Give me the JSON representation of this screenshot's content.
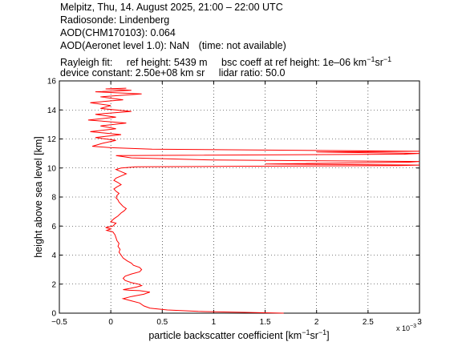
{
  "header": {
    "line1": "Melpitz, Thu, 14. August 2025, 21:00 – 22:00 UTC",
    "line2": "Radiosonde: Lindenberg",
    "line3": "AOD(CHM170103): 0.064",
    "line4a": "AOD(Aeronet level 1.0): NaN",
    "line4b": "(time: not available)",
    "line5a": "Rayleigh fit:",
    "line5b": "ref height: 5439 m",
    "line5c": "bsc coeff at ref height: 1e–06 km",
    "line5c_sup1": "−1",
    "line5c_mid": "sr",
    "line5c_sup2": "−1",
    "line6a": "device constant: 2.50e+08 km sr",
    "line6b": "lidar ratio: 50.0"
  },
  "chart_data": {
    "type": "line",
    "xlabel": "particle backscatter coefficient [km",
    "xlabel_sup1": "−1",
    "xlabel_mid": "sr",
    "xlabel_sup2": "−1",
    "xlabel_end": "]",
    "ylabel": "height above sea level [km]",
    "x_exponent_label": "x 10",
    "x_exponent_power": "−3",
    "xlim": [
      -0.5,
      3.0
    ],
    "ylim": [
      0,
      16
    ],
    "xticks": [
      "−0.5",
      "0",
      "0.5",
      "1",
      "1.5",
      "2",
      "2.5",
      "3"
    ],
    "yticks": [
      "0",
      "2",
      "4",
      "6",
      "8",
      "10",
      "12",
      "14",
      "16"
    ],
    "grid": true,
    "line_color": "#ff0000",
    "series": [
      {
        "points": [
          [
            1.68,
            0.0
          ],
          [
            1.35,
            0.05
          ],
          [
            0.85,
            0.12
          ],
          [
            0.55,
            0.22
          ],
          [
            0.38,
            0.35
          ],
          [
            0.32,
            0.5
          ],
          [
            0.28,
            0.7
          ],
          [
            0.2,
            0.85
          ],
          [
            0.12,
            1.0
          ],
          [
            0.2,
            1.15
          ],
          [
            0.32,
            1.3
          ],
          [
            0.38,
            1.45
          ],
          [
            0.28,
            1.55
          ],
          [
            0.18,
            1.58
          ],
          [
            0.12,
            1.62
          ],
          [
            0.18,
            1.7
          ],
          [
            0.25,
            1.8
          ],
          [
            0.3,
            1.9
          ],
          [
            0.27,
            2.0
          ],
          [
            0.2,
            2.1
          ],
          [
            0.14,
            2.25
          ],
          [
            0.12,
            2.4
          ],
          [
            0.14,
            2.55
          ],
          [
            0.2,
            2.7
          ],
          [
            0.28,
            2.85
          ],
          [
            0.3,
            3.0
          ],
          [
            0.28,
            3.15
          ],
          [
            0.22,
            3.3
          ],
          [
            0.2,
            3.45
          ],
          [
            0.16,
            3.6
          ],
          [
            0.12,
            3.8
          ],
          [
            0.1,
            4.0
          ],
          [
            0.08,
            4.2
          ],
          [
            0.09,
            4.4
          ],
          [
            0.07,
            4.6
          ],
          [
            0.08,
            4.8
          ],
          [
            0.06,
            5.0
          ],
          [
            0.05,
            5.2
          ],
          [
            0.04,
            5.4
          ],
          [
            0.02,
            5.6
          ],
          [
            -0.04,
            5.7
          ],
          [
            0.0,
            5.8
          ],
          [
            -0.05,
            5.9
          ],
          [
            0.02,
            6.0
          ],
          [
            0.05,
            6.2
          ],
          [
            0.0,
            6.3
          ],
          [
            0.03,
            6.5
          ],
          [
            0.07,
            6.7
          ],
          [
            0.1,
            6.9
          ],
          [
            0.13,
            7.05
          ],
          [
            0.15,
            7.2
          ],
          [
            0.12,
            7.35
          ],
          [
            0.1,
            7.5
          ],
          [
            0.08,
            7.65
          ],
          [
            0.07,
            7.8
          ],
          [
            0.05,
            7.95
          ],
          [
            0.06,
            8.1
          ],
          [
            0.08,
            8.25
          ],
          [
            0.05,
            8.4
          ],
          [
            0.03,
            8.55
          ],
          [
            0.06,
            8.7
          ],
          [
            0.1,
            8.85
          ],
          [
            0.07,
            9.0
          ],
          [
            0.03,
            9.15
          ],
          [
            0.05,
            9.3
          ],
          [
            0.1,
            9.45
          ],
          [
            0.15,
            9.6
          ],
          [
            0.1,
            9.75
          ],
          [
            0.05,
            9.9
          ],
          [
            0.1,
            10.0
          ],
          [
            0.25,
            10.08
          ],
          [
            1.2,
            10.12
          ],
          [
            2.8,
            10.16
          ],
          [
            3.0,
            10.2
          ],
          [
            1.5,
            10.28
          ],
          [
            2.9,
            10.4
          ],
          [
            3.0,
            10.45
          ],
          [
            1.0,
            10.55
          ],
          [
            0.2,
            10.7
          ],
          [
            0.05,
            10.85
          ],
          [
            2.85,
            10.95
          ],
          [
            3.0,
            11.0
          ],
          [
            2.0,
            11.1
          ],
          [
            3.0,
            11.15
          ],
          [
            0.4,
            11.3
          ],
          [
            0.0,
            11.4
          ],
          [
            -0.18,
            11.5
          ],
          [
            -0.08,
            11.7
          ],
          [
            0.05,
            11.9
          ],
          [
            -0.15,
            12.1
          ],
          [
            0.1,
            12.3
          ],
          [
            -0.2,
            12.5
          ],
          [
            0.05,
            12.7
          ],
          [
            -0.1,
            12.9
          ],
          [
            0.15,
            13.1
          ],
          [
            -0.22,
            13.3
          ],
          [
            0.05,
            13.5
          ],
          [
            -0.15,
            13.7
          ],
          [
            0.2,
            13.9
          ],
          [
            -0.1,
            14.1
          ],
          [
            0.0,
            14.3
          ],
          [
            -0.2,
            14.5
          ],
          [
            0.12,
            14.7
          ],
          [
            -0.1,
            14.9
          ],
          [
            0.3,
            15.1
          ],
          [
            -0.15,
            15.25
          ],
          [
            0.2,
            15.35
          ],
          [
            -0.05,
            15.45
          ],
          [
            0.15,
            15.5
          ]
        ]
      }
    ]
  }
}
